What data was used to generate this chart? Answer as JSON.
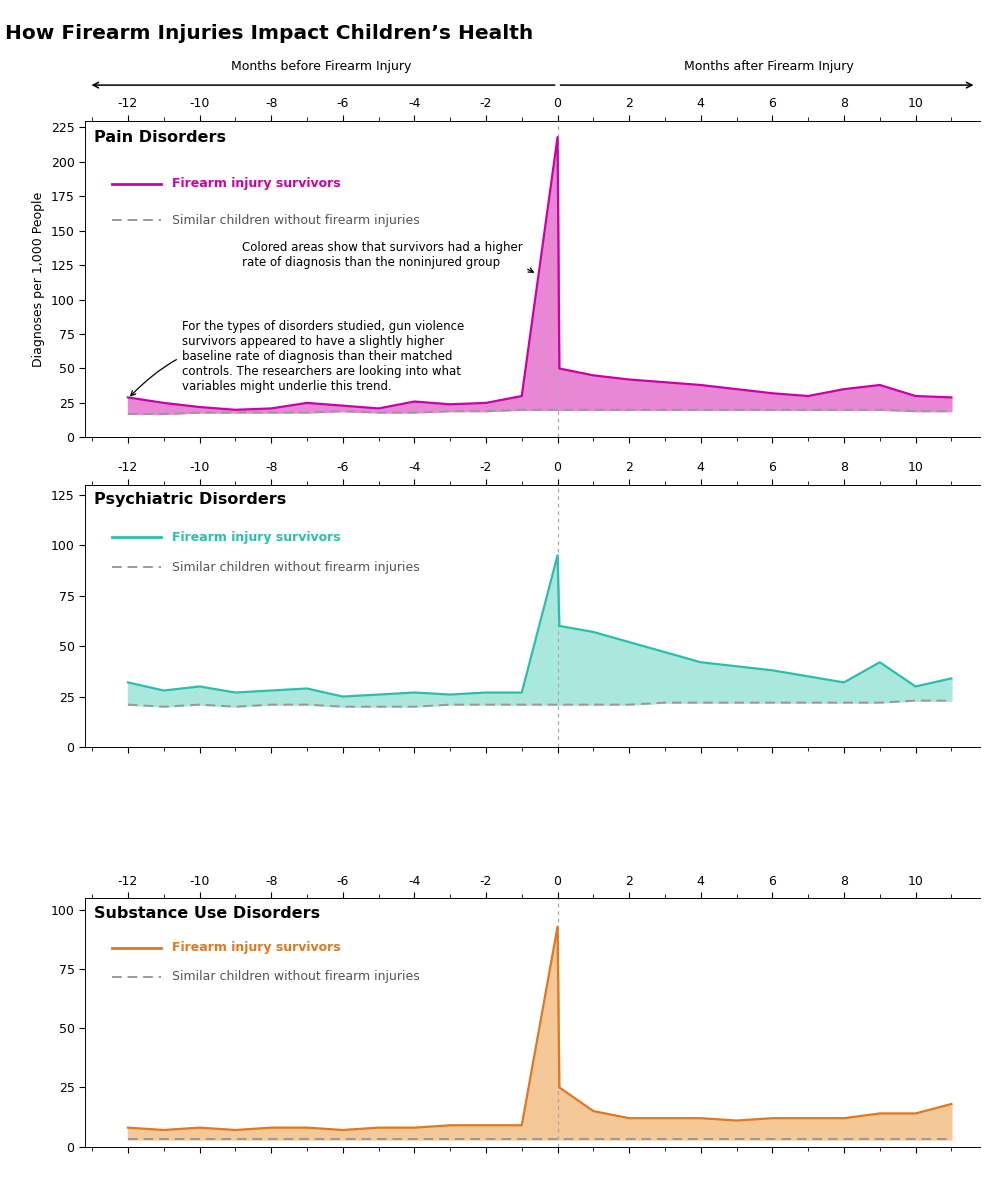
{
  "title": "How Firearm Injuries Impact Children’s Health",
  "xlabel_before": "Months before Firearm Injury",
  "xlabel_after": "Months after Firearm Injury",
  "ylabel": "Diagnoses per 1,000 People",
  "x_ticks": [
    -12,
    -10,
    -8,
    -6,
    -4,
    -2,
    0,
    2,
    4,
    6,
    8,
    10
  ],
  "x_range": [
    -13.2,
    11.8
  ],
  "pain_title": "Pain Disorders",
  "pain_color": "#cc00aa",
  "pain_fill_color": "#e888d5",
  "pain_ylim": [
    0,
    230
  ],
  "pain_yticks": [
    0,
    25,
    50,
    75,
    100,
    125,
    150,
    175,
    200,
    225
  ],
  "pain_survivors_x": [
    -12,
    -11,
    -10,
    -9,
    -8,
    -7,
    -6,
    -5,
    -4,
    -3,
    -2,
    -1,
    0,
    0.05,
    1,
    2,
    3,
    4,
    5,
    6,
    7,
    8,
    9,
    10,
    11
  ],
  "pain_survivors_y": [
    29,
    25,
    22,
    20,
    21,
    25,
    23,
    21,
    26,
    24,
    25,
    30,
    218,
    50,
    45,
    42,
    40,
    38,
    35,
    32,
    30,
    35,
    38,
    30,
    29
  ],
  "pain_control_x": [
    -12,
    -11,
    -10,
    -9,
    -8,
    -7,
    -6,
    -5,
    -4,
    -3,
    -2,
    -1,
    0,
    1,
    2,
    3,
    4,
    5,
    6,
    7,
    8,
    9,
    10,
    11
  ],
  "pain_control_y": [
    17,
    17,
    18,
    18,
    18,
    18,
    19,
    18,
    18,
    19,
    19,
    20,
    20,
    20,
    20,
    20,
    20,
    20,
    20,
    20,
    20,
    20,
    19,
    19
  ],
  "psych_title": "Psychiatric Disorders",
  "psych_color": "#2abfad",
  "psych_fill_color": "#aae8de",
  "psych_ylim": [
    0,
    130
  ],
  "psych_yticks": [
    0,
    25,
    50,
    75,
    100,
    125
  ],
  "psych_survivors_x": [
    -12,
    -11,
    -10,
    -9,
    -8,
    -7,
    -6,
    -5,
    -4,
    -3,
    -2,
    -1,
    0,
    0.05,
    1,
    2,
    3,
    4,
    5,
    6,
    7,
    8,
    9,
    10,
    11
  ],
  "psych_survivors_y": [
    32,
    28,
    30,
    27,
    28,
    29,
    25,
    26,
    27,
    26,
    27,
    27,
    95,
    60,
    57,
    52,
    47,
    42,
    40,
    38,
    35,
    32,
    42,
    30,
    34
  ],
  "psych_control_x": [
    -12,
    -11,
    -10,
    -9,
    -8,
    -7,
    -6,
    -5,
    -4,
    -3,
    -2,
    -1,
    0,
    1,
    2,
    3,
    4,
    5,
    6,
    7,
    8,
    9,
    10,
    11
  ],
  "psych_control_y": [
    21,
    20,
    21,
    20,
    21,
    21,
    20,
    20,
    20,
    21,
    21,
    21,
    21,
    21,
    21,
    22,
    22,
    22,
    22,
    22,
    22,
    22,
    23,
    23
  ],
  "substance_title": "Substance Use Disorders",
  "substance_color": "#e07820",
  "substance_fill_color": "#f5c898",
  "substance_ylim": [
    0,
    105
  ],
  "substance_yticks": [
    0,
    25,
    50,
    75,
    100
  ],
  "substance_survivors_x": [
    -12,
    -11,
    -10,
    -9,
    -8,
    -7,
    -6,
    -5,
    -4,
    -3,
    -2,
    -1,
    0,
    0.05,
    1,
    2,
    3,
    4,
    5,
    6,
    7,
    8,
    9,
    10,
    11
  ],
  "substance_survivors_y": [
    8,
    7,
    8,
    7,
    8,
    8,
    7,
    8,
    8,
    9,
    9,
    9,
    93,
    25,
    15,
    12,
    12,
    12,
    11,
    12,
    12,
    12,
    14,
    14,
    18
  ],
  "substance_control_x": [
    -12,
    -11,
    -10,
    -9,
    -8,
    -7,
    -6,
    -5,
    -4,
    -3,
    -2,
    -1,
    0,
    1,
    2,
    3,
    4,
    5,
    6,
    7,
    8,
    9,
    10,
    11
  ],
  "substance_control_y": [
    3,
    3,
    3,
    3,
    3,
    3,
    3,
    3,
    3,
    3,
    3,
    3,
    3,
    3,
    3,
    3,
    3,
    3,
    3,
    3,
    3,
    3,
    3,
    3
  ],
  "legend_survivor_label": "Firearm injury survivors",
  "legend_control_label": "Similar children without firearm injuries",
  "annotation1_text": "Colored areas show that survivors had a higher\nrate of diagnosis than the noninjured group",
  "annotation2_text": "For the types of disorders studied, gun violence\nsurvivors appeared to have a slightly higher\nbaseline rate of diagnosis than their matched\ncontrols. The researchers are looking into what\nvariables might underlie this trend.",
  "control_color": "#999999",
  "background_color": "#ffffff"
}
